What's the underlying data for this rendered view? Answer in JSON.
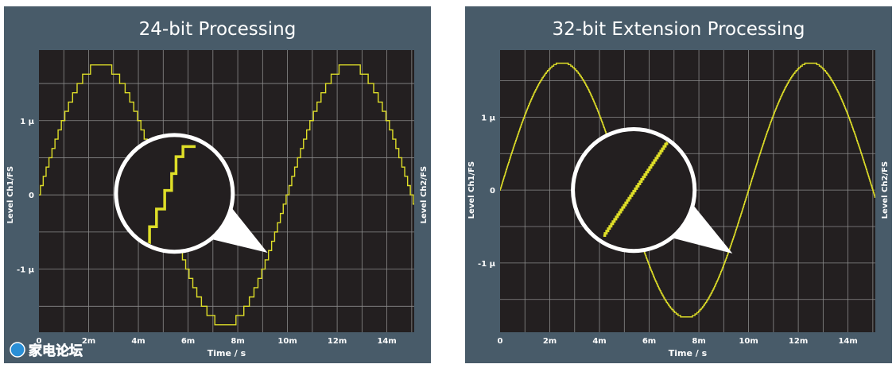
{
  "colors": {
    "panel_bg": "#485b69",
    "plot_bg": "#231f20",
    "grid": "#8a8a8a",
    "signal": "#dede28",
    "text": "#ffffff",
    "magnifier_ring": "#ffffff"
  },
  "watermark": {
    "text": "家电论坛"
  },
  "chart_data": [
    {
      "type": "line",
      "title": "24-bit Processing",
      "xlabel": "Time / s",
      "ylabel_left": "Level Ch1/FS",
      "ylabel_right": "Level Ch2/FS",
      "xlim": [
        0,
        0.0151
      ],
      "ylim": [
        -1.85,
        1.95
      ],
      "x_ticks": [
        {
          "value": 0,
          "label": "0"
        },
        {
          "value": 0.002,
          "label": "2m"
        },
        {
          "value": 0.004,
          "label": "4m"
        },
        {
          "value": 0.006,
          "label": "6m"
        },
        {
          "value": 0.008,
          "label": "8m"
        },
        {
          "value": 0.01,
          "label": "10m"
        },
        {
          "value": 0.012,
          "label": "12m"
        },
        {
          "value": 0.014,
          "label": "14m"
        }
      ],
      "y_ticks": [
        {
          "value": 1,
          "label": "1 μ"
        },
        {
          "value": 0,
          "label": "0"
        },
        {
          "value": -1,
          "label": "-1 μ"
        }
      ],
      "x_grid_step": 0.001,
      "y_grid_step": 0.5,
      "grid": true,
      "series": [
        {
          "waveform": "sine",
          "amplitude": 1.75,
          "period": 0.01,
          "quantization_step": 0.125,
          "x_range": [
            0,
            0.0151
          ]
        }
      ],
      "magnifier": {
        "center": [
          0.00545,
          0.02
        ],
        "radius_x": 0.00235,
        "radius_y": 0.86,
        "pointer_to": [
          0.0092,
          -0.78
        ],
        "zoomed_trace": "quantized staircase"
      }
    },
    {
      "type": "line",
      "title": "32-bit Extension Processing",
      "xlabel": "Time / s",
      "ylabel_left": "Level Ch1/FS",
      "ylabel_right": "Level Ch2/FS",
      "xlim": [
        0,
        0.0151
      ],
      "ylim": [
        -1.95,
        1.92
      ],
      "x_ticks": [
        {
          "value": 0,
          "label": "0"
        },
        {
          "value": 0.002,
          "label": "2m"
        },
        {
          "value": 0.004,
          "label": "4m"
        },
        {
          "value": 0.006,
          "label": "6m"
        },
        {
          "value": 0.008,
          "label": "8m"
        },
        {
          "value": 0.01,
          "label": "10m"
        },
        {
          "value": 0.012,
          "label": "12m"
        },
        {
          "value": 0.014,
          "label": "14m"
        }
      ],
      "y_ticks": [
        {
          "value": 1,
          "label": "1 μ"
        },
        {
          "value": 0,
          "label": "0"
        },
        {
          "value": -1,
          "label": "-1 μ"
        }
      ],
      "x_grid_step": 0.001,
      "y_grid_step": 0.5,
      "grid": true,
      "series": [
        {
          "waveform": "sine",
          "amplitude": 1.75,
          "period": 0.01,
          "quantization_step": 0.02,
          "x_range": [
            0,
            0.0151
          ]
        }
      ],
      "magnifier": {
        "center": [
          0.00538,
          0.0
        ],
        "radius_x": 0.00245,
        "radius_y": 0.99,
        "pointer_to": [
          0.00935,
          -0.87
        ],
        "zoomed_trace": "fine staircase"
      }
    }
  ]
}
